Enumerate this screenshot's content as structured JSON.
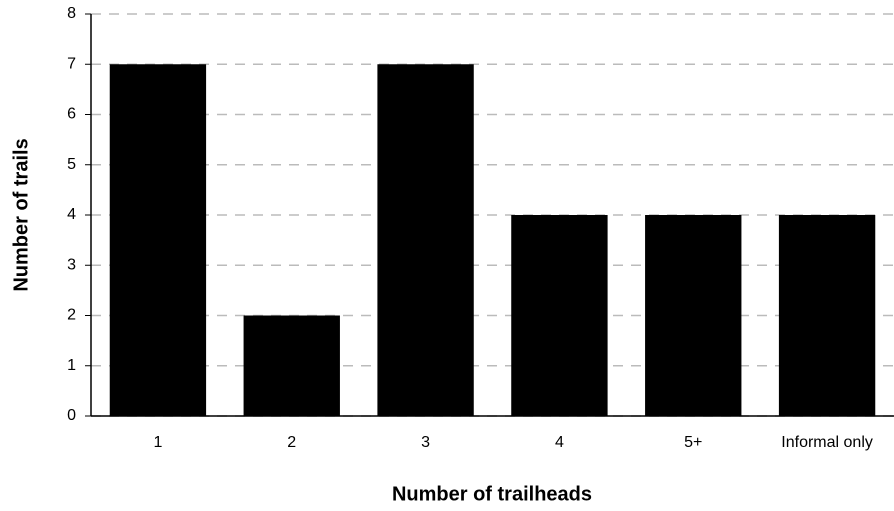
{
  "chart_data": {
    "type": "bar",
    "x_label": "Number of trailheads",
    "y_label": "Number of trails",
    "categories": [
      "1",
      "2",
      "3",
      "4",
      "5+",
      "Informal only"
    ],
    "values": [
      7,
      2,
      7,
      4,
      4,
      4
    ],
    "color": "#000000",
    "ylim": [
      0,
      8
    ],
    "yticks": [
      0,
      1,
      2,
      3,
      4,
      5,
      6,
      7,
      8
    ],
    "grid": true
  }
}
